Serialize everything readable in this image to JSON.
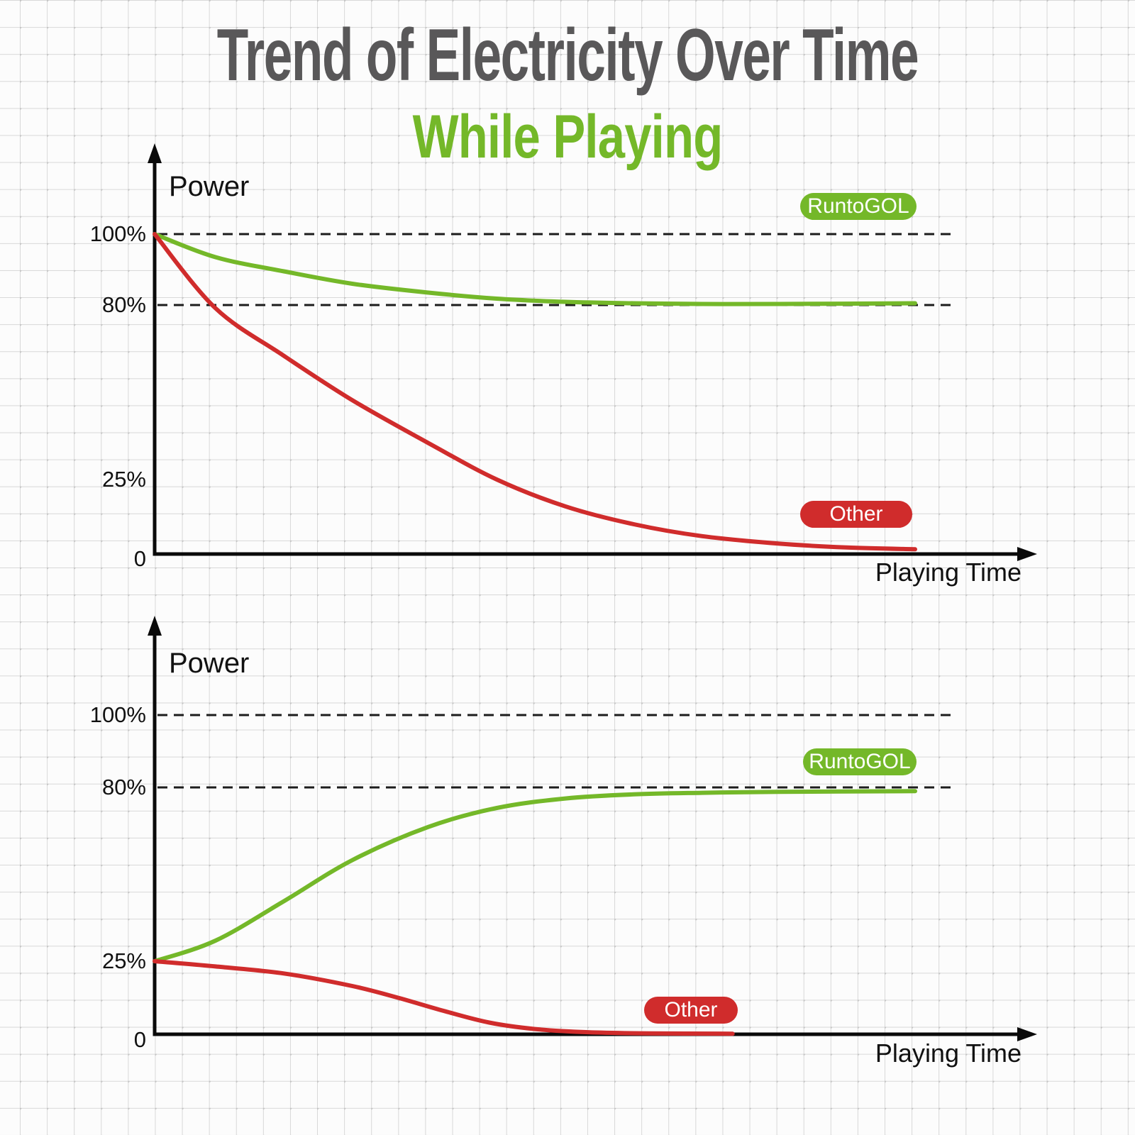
{
  "title": {
    "text": "Trend of Electricity Over Time",
    "color": "#595859"
  },
  "subtitle": {
    "text": "While Playing",
    "color": "#74b829"
  },
  "colors": {
    "green": "#74b829",
    "red": "#d02c2c",
    "axis": "#0a0a0a",
    "dashed": "#1c1c1c",
    "grid_line": "#d8d8d8",
    "background": "#fcfcfc",
    "badge_text": "#ffffff"
  },
  "chart_data": [
    {
      "type": "line",
      "name": "power-drain-while-playing",
      "ylabel": "Power",
      "xlabel": "Playing Time",
      "yticks": [
        "100%",
        "80%",
        "25%",
        "0"
      ],
      "ytick_values": [
        100,
        80,
        25,
        0
      ],
      "dashed_gridlines": [
        100,
        80
      ],
      "x_range": [
        0,
        1
      ],
      "ylim": [
        0,
        115
      ],
      "legend_position": "badges-on-plot",
      "grid": "graph-paper",
      "series": [
        {
          "name": "RuntoGOL",
          "color_key": "green",
          "label_badge": "RuntoGOL",
          "x": [
            0,
            0.08,
            0.17,
            0.26,
            0.36,
            0.45,
            0.54,
            0.63,
            0.72,
            0.82,
            1.0
          ],
          "y": [
            100,
            93.5,
            89.5,
            86,
            83.5,
            81.8,
            80.9,
            80.5,
            80.3,
            80.3,
            80.5
          ]
        },
        {
          "name": "Other",
          "color_key": "red",
          "label_badge": "Other",
          "x": [
            0,
            0.08,
            0.17,
            0.26,
            0.36,
            0.45,
            0.54,
            0.63,
            0.72,
            0.82,
            0.91,
            1.0
          ],
          "y": [
            100,
            79,
            64,
            50,
            36.5,
            25,
            16,
            10,
            6,
            3.5,
            2.2,
            1.6
          ]
        }
      ]
    },
    {
      "type": "line",
      "name": "power-recharge-while-playing",
      "ylabel": "Power",
      "xlabel": "Playing Time",
      "yticks": [
        "100%",
        "80%",
        "25%",
        "0"
      ],
      "ytick_values": [
        100,
        80,
        25,
        0
      ],
      "dashed_gridlines": [
        100,
        80
      ],
      "x_range": [
        0,
        1
      ],
      "ylim": [
        0,
        115
      ],
      "legend_position": "badges-on-plot",
      "grid": "graph-paper",
      "series": [
        {
          "name": "RuntoGOL",
          "color_key": "green",
          "label_badge": "RuntoGOL",
          "x": [
            0,
            0.08,
            0.17,
            0.26,
            0.36,
            0.45,
            0.54,
            0.63,
            0.72,
            0.82,
            1.0
          ],
          "y": [
            25,
            31.5,
            44,
            57,
            67.5,
            73.5,
            76.5,
            77.8,
            78.3,
            78.6,
            78.8
          ]
        },
        {
          "name": "Other",
          "color_key": "red",
          "label_badge": "Other",
          "x": [
            0,
            0.08,
            0.17,
            0.26,
            0.32,
            0.38,
            0.44,
            0.5,
            0.57,
            0.65,
            0.76
          ],
          "y": [
            25,
            23.2,
            20.8,
            16.5,
            12.5,
            8,
            4,
            1.8,
            0.7,
            0.3,
            0.2
          ]
        }
      ]
    }
  ]
}
